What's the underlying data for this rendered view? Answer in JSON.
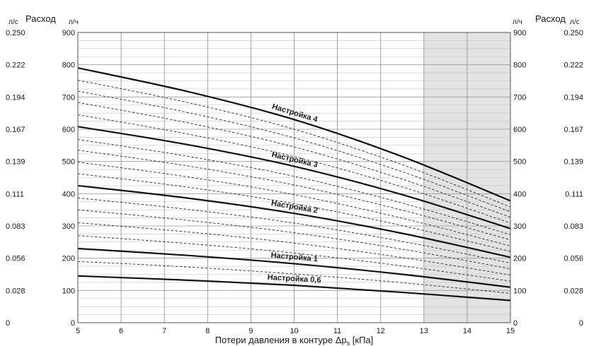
{
  "chart_data": {
    "type": "line",
    "title": "",
    "xlabel": "Потери давления в контуре Δp",
    "xlabel_subscript": "s",
    "xlabel_unit": " [кПа]",
    "ylabel": "Расход",
    "ylabel_unit_left": "л/ч",
    "ylabel_unit_outer": "л/с",
    "xlim": [
      5,
      15
    ],
    "ylim": [
      0,
      900
    ],
    "x_ticks": [
      "5",
      "6",
      "7",
      "8",
      "9",
      "10",
      "11",
      "12",
      "13",
      "14",
      "15"
    ],
    "y_ticks": [
      "0",
      "100",
      "200",
      "300",
      "400",
      "500",
      "600",
      "700",
      "800",
      "900"
    ],
    "y_ticks_ls": [
      "0",
      "0.028",
      "0.056",
      "0.083",
      "0.111",
      "0.139",
      "0.167",
      "0.194",
      "0.222",
      "0.250"
    ],
    "shaded_region": [
      13,
      15
    ],
    "grid": true,
    "x": [
      5,
      7.5,
      10,
      12.5,
      15
    ],
    "series": [
      {
        "name": "Настройка 4",
        "style": "solid",
        "values": [
          790,
          718,
          630,
          515,
          378
        ]
      },
      {
        "name": "",
        "style": "dashed",
        "values": [
          752,
          684,
          600,
          490,
          359
        ]
      },
      {
        "name": "",
        "style": "dashed",
        "values": [
          718,
          653,
          573,
          468,
          344
        ]
      },
      {
        "name": "",
        "style": "dashed",
        "values": [
          683,
          621,
          545,
          445,
          327
        ]
      },
      {
        "name": "",
        "style": "dashed",
        "values": [
          645,
          586,
          515,
          421,
          309
        ]
      },
      {
        "name": "Настройка 3",
        "style": "solid",
        "values": [
          608,
          553,
          485,
          397,
          292
        ]
      },
      {
        "name": "",
        "style": "dashed",
        "values": [
          568,
          517,
          454,
          371,
          273
        ]
      },
      {
        "name": "",
        "style": "dashed",
        "values": [
          535,
          487,
          427,
          349,
          257
        ]
      },
      {
        "name": "",
        "style": "dashed",
        "values": [
          498,
          453,
          397,
          324,
          238
        ]
      },
      {
        "name": "",
        "style": "dashed",
        "values": [
          462,
          421,
          369,
          301,
          221
        ]
      },
      {
        "name": "Настройка 2",
        "style": "solid",
        "values": [
          425,
          387,
          339,
          277,
          203
        ]
      },
      {
        "name": "",
        "style": "dashed",
        "values": [
          387,
          352,
          309,
          252,
          185
        ]
      },
      {
        "name": "",
        "style": "dashed",
        "values": [
          350,
          318,
          279,
          228,
          167
        ]
      },
      {
        "name": "",
        "style": "dashed",
        "values": [
          310,
          282,
          247,
          202,
          148
        ]
      },
      {
        "name": "",
        "style": "dashed",
        "values": [
          270,
          246,
          216,
          176,
          129
        ]
      },
      {
        "name": "Настройка 1",
        "style": "solid",
        "values": [
          230,
          209,
          183,
          150,
          110
        ]
      },
      {
        "name": "",
        "style": "dashed",
        "values": [
          190,
          173,
          151,
          124,
          91
        ]
      },
      {
        "name": "Настройка 0,6",
        "style": "solid",
        "values": [
          145,
          132,
          116,
          94,
          69
        ]
      }
    ]
  }
}
